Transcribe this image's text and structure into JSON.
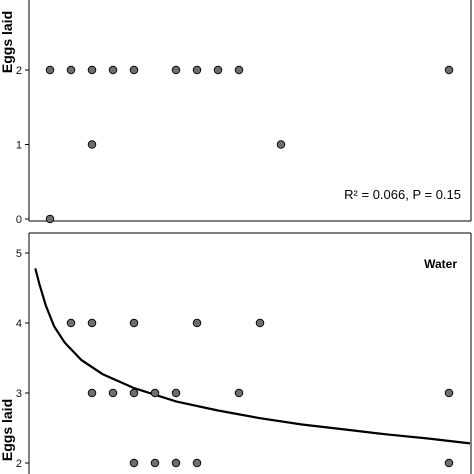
{
  "chart_data": [
    {
      "type": "scatter",
      "ylabel": "Eggs laid",
      "ylim": [
        0,
        2.8
      ],
      "yticks": [
        "0",
        "1",
        "2"
      ],
      "annotation": "R² = 0.066, P = 0.15",
      "panel_label": "",
      "grid": false,
      "points": [
        {
          "x": 1,
          "y": 2
        },
        {
          "x": 2,
          "y": 2
        },
        {
          "x": 3,
          "y": 2
        },
        {
          "x": 4,
          "y": 2
        },
        {
          "x": 5,
          "y": 2
        },
        {
          "x": 7,
          "y": 2
        },
        {
          "x": 8,
          "y": 2
        },
        {
          "x": 9,
          "y": 2
        },
        {
          "x": 10,
          "y": 2
        },
        {
          "x": 20,
          "y": 2
        },
        {
          "x": 3,
          "y": 1
        },
        {
          "x": 12,
          "y": 1
        },
        {
          "x": 1,
          "y": 0
        }
      ]
    },
    {
      "type": "scatter",
      "ylabel": "Eggs laid",
      "ylim": [
        1.8,
        5.2
      ],
      "yticks": [
        "2",
        "3",
        "4",
        "5"
      ],
      "annotation": "",
      "panel_label": "Water",
      "grid": false,
      "points": [
        {
          "x": 2,
          "y": 4
        },
        {
          "x": 3,
          "y": 4
        },
        {
          "x": 5,
          "y": 4
        },
        {
          "x": 8,
          "y": 4
        },
        {
          "x": 11,
          "y": 4
        },
        {
          "x": 3,
          "y": 3
        },
        {
          "x": 4,
          "y": 3
        },
        {
          "x": 5,
          "y": 3
        },
        {
          "x": 6,
          "y": 3
        },
        {
          "x": 7,
          "y": 3
        },
        {
          "x": 10,
          "y": 3
        },
        {
          "x": 20,
          "y": 3
        },
        {
          "x": 5,
          "y": 2
        },
        {
          "x": 6,
          "y": 2
        },
        {
          "x": 7,
          "y": 2
        },
        {
          "x": 8,
          "y": 2
        },
        {
          "x": 20,
          "y": 2
        }
      ],
      "fit_line": {
        "x": [
          0.3,
          0.5,
          0.8,
          1.2,
          1.7,
          2.5,
          3.5,
          5,
          7,
          9,
          11,
          13,
          15,
          17,
          19,
          21
        ],
        "y": [
          4.78,
          4.55,
          4.25,
          3.95,
          3.72,
          3.47,
          3.27,
          3.07,
          2.88,
          2.75,
          2.64,
          2.55,
          2.48,
          2.41,
          2.35,
          2.28
        ]
      }
    }
  ]
}
